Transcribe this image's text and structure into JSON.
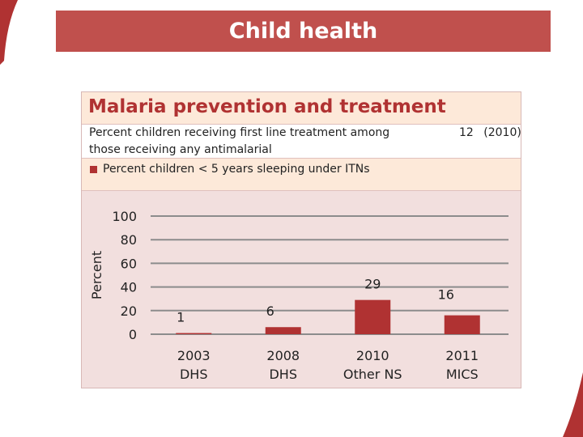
{
  "slide": {
    "title": "Child health"
  },
  "panel": {
    "title": "Malaria prevention and treatment",
    "info": {
      "text": "Percent children receiving first line treatment among those receiving any antimalarial",
      "value": "12",
      "year": "(2010)"
    },
    "legend": "Percent children < 5 years sleeping under ITNs"
  },
  "colors": {
    "accent": "#c0504d",
    "bar": "#b03232",
    "grid": "#8c8c8c"
  },
  "chart_data": {
    "type": "bar",
    "title": "Malaria prevention and treatment",
    "ylabel": "Percent",
    "xlabel": "",
    "ylim": [
      0,
      100
    ],
    "yticks": [
      0,
      20,
      40,
      60,
      80,
      100
    ],
    "grid": true,
    "categories": [
      [
        "2003",
        "DHS"
      ],
      [
        "2008",
        "DHS"
      ],
      [
        "2010",
        "Other NS"
      ],
      [
        "2011",
        "MICS"
      ]
    ],
    "series": [
      {
        "name": "Percent children < 5 years sleeping under ITNs",
        "values": [
          1,
          6,
          29,
          16
        ]
      }
    ]
  }
}
